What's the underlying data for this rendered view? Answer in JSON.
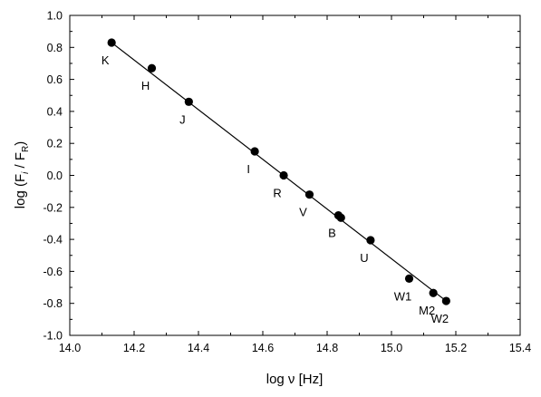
{
  "chart_data": {
    "type": "scatter",
    "x_title": "log ν [Hz]",
    "y_title_base": "log (F",
    "y_title_sub1": "i",
    "y_title_mid": " / F",
    "y_title_sub2": "R",
    "y_title_end": ")",
    "xlim": [
      14.0,
      15.4
    ],
    "ylim": [
      -1.0,
      1.0
    ],
    "x_ticks": [
      "14.0",
      "14.2",
      "14.4",
      "14.6",
      "14.8",
      "15.0",
      "15.2",
      "15.4"
    ],
    "y_ticks": [
      "1.0",
      "0.8",
      "0.6",
      "0.4",
      "0.2",
      "0.0",
      "-0.2",
      "-0.4",
      "-0.6",
      "-0.8",
      "-1.0"
    ],
    "grid": false,
    "series": [
      {
        "points": [
          {
            "label": "K",
            "x": 14.13,
            "y": 0.83
          },
          {
            "label": "H",
            "x": 14.255,
            "y": 0.67
          },
          {
            "label": "J",
            "x": 14.37,
            "y": 0.46
          },
          {
            "label": "I",
            "x": 14.575,
            "y": 0.15
          },
          {
            "label": "R",
            "x": 14.665,
            "y": 0.0
          },
          {
            "label": "V",
            "x": 14.745,
            "y": -0.12
          },
          {
            "label": "B",
            "x": 14.835,
            "y": -0.25
          },
          {
            "label": "",
            "x": 14.843,
            "y": -0.265
          },
          {
            "label": "U",
            "x": 14.935,
            "y": -0.405
          },
          {
            "label": "W1",
            "x": 15.055,
            "y": -0.645
          },
          {
            "label": "M2",
            "x": 15.13,
            "y": -0.735
          },
          {
            "label": "W2",
            "x": 15.17,
            "y": -0.785
          }
        ]
      }
    ],
    "fit_line": {
      "x": [
        14.13,
        15.17
      ],
      "y": [
        0.83,
        -0.785
      ]
    },
    "colors": {
      "marker": "#000000",
      "line": "#000000"
    }
  }
}
